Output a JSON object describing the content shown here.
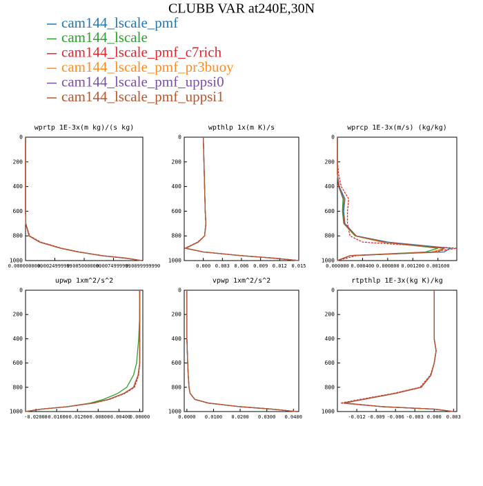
{
  "legend": [
    {
      "name": "cam144_lscale_pmf",
      "color": "#1f77b4"
    },
    {
      "name": "cam144_lscale",
      "color": "#2ca02c"
    },
    {
      "name": "cam144_lscale_pmf_c7rich",
      "color": "#e3242b"
    },
    {
      "name": "cam144_lscale_pmf_pr3buoy",
      "color": "#ff8c1a"
    },
    {
      "name": "cam144_lscale_pmf_uppsi0",
      "color": "#7a4fa6"
    },
    {
      "name": "cam144_lscale_pmf_uppsi1",
      "color": "#b5562c"
    }
  ],
  "title": "CLUBB VAR at240E,30N",
  "chart_data": [
    {
      "type": "line",
      "title": "wprtp  1E-3x(m kg)/(s kg)",
      "y_inverted": true,
      "ylim": [
        0,
        1000
      ],
      "yticks": [
        0,
        200,
        400,
        600,
        800,
        1000
      ],
      "xlim": [
        0,
        0.01
      ],
      "xticks": [
        {
          "value": 0,
          "label": "0.0000000000"
        },
        {
          "value": 0.0025,
          "label": "0.0024999999"
        },
        {
          "value": 0.005,
          "label": "0.0050000000"
        },
        {
          "value": 0.0075,
          "label": "0.0074999999"
        },
        {
          "value": 0.01,
          "label": "0.0099999990"
        }
      ],
      "y": [
        0,
        200,
        400,
        600,
        700,
        800,
        850,
        900,
        930,
        960,
        980,
        1000
      ],
      "series": [
        {
          "values": [
            0,
            0,
            0,
            0,
            2e-05,
            0.0003,
            0.0012,
            0.003,
            0.0045,
            0.0065,
            0.0085,
            0.0099
          ]
        },
        {
          "values": [
            0,
            0,
            0,
            0,
            2e-05,
            0.0003,
            0.0012,
            0.003,
            0.0045,
            0.0065,
            0.0085,
            0.0099
          ]
        },
        {
          "values": [
            0,
            0,
            0,
            0,
            3e-05,
            0.00035,
            0.0013,
            0.0031,
            0.0046,
            0.0066,
            0.0086,
            0.0099
          ]
        },
        {
          "values": [
            0,
            0,
            0,
            0,
            2e-05,
            0.0003,
            0.0012,
            0.003,
            0.0045,
            0.0065,
            0.0085,
            0.0099
          ]
        },
        {
          "values": [
            0,
            0,
            0,
            0,
            2e-05,
            0.0003,
            0.0012,
            0.003,
            0.0045,
            0.0065,
            0.0085,
            0.0099
          ]
        },
        {
          "values": [
            0,
            0,
            0,
            0,
            2e-05,
            0.0003,
            0.0012,
            0.003,
            0.0045,
            0.0065,
            0.0085,
            0.0099
          ]
        }
      ]
    },
    {
      "type": "line",
      "title": "wpthlp  1x(m K)/s",
      "y_inverted": true,
      "ylim": [
        0,
        1000
      ],
      "yticks": [
        0,
        200,
        400,
        600,
        800,
        1000
      ],
      "xlim": [
        -0.003,
        0.015
      ],
      "xticks": [
        {
          "value": 0,
          "label": "0.000"
        },
        {
          "value": 0.003,
          "label": "0.003"
        },
        {
          "value": 0.006,
          "label": "0.006"
        },
        {
          "value": 0.009,
          "label": "0.009"
        },
        {
          "value": 0.012,
          "label": "0.012"
        },
        {
          "value": 0.015,
          "label": "0.015"
        }
      ],
      "y": [
        0,
        200,
        400,
        600,
        700,
        800,
        850,
        900,
        930,
        960,
        980,
        1000
      ],
      "series": [
        {
          "values": [
            0,
            0.0001,
            0.0002,
            0.0003,
            0.0004,
            0.0002,
            -0.0008,
            -0.0028,
            0,
            0.006,
            0.011,
            0.015
          ]
        },
        {
          "values": [
            0,
            0.0001,
            0.0002,
            0.0003,
            0.0004,
            0.0002,
            -0.0008,
            -0.0027,
            0,
            0.006,
            0.011,
            0.015
          ]
        },
        {
          "values": [
            0,
            0.0001,
            0.0002,
            0.0003,
            0.0004,
            0.0002,
            -0.0009,
            -0.0029,
            0,
            0.006,
            0.011,
            0.015
          ]
        },
        {
          "values": [
            0,
            0.0001,
            0.0002,
            0.0003,
            0.0004,
            0.0002,
            -0.0008,
            -0.0028,
            0,
            0.006,
            0.011,
            0.015
          ]
        },
        {
          "values": [
            0,
            0.0001,
            0.0002,
            0.0003,
            0.0004,
            0.0002,
            -0.0008,
            -0.0028,
            0,
            0.006,
            0.011,
            0.015
          ]
        },
        {
          "values": [
            0,
            0.0001,
            0.0002,
            0.0003,
            0.0004,
            0.0002,
            -0.0008,
            -0.0028,
            0,
            0.006,
            0.011,
            0.015
          ]
        }
      ]
    },
    {
      "type": "line",
      "title": "wprcp  1E-3x(m/s) (kg/kg)",
      "y_inverted": true,
      "ylim": [
        0,
        1000
      ],
      "yticks": [
        0,
        200,
        400,
        600,
        800,
        1000
      ],
      "xlim": [
        0,
        0.0019
      ],
      "xticks": [
        {
          "value": 0,
          "label": "0.000000"
        },
        {
          "value": 0.0004,
          "label": "0.000400"
        },
        {
          "value": 0.0008,
          "label": "0.000800"
        },
        {
          "value": 0.0012,
          "label": "0.001200"
        },
        {
          "value": 0.0016,
          "label": "0.001600"
        }
      ],
      "y": [
        0,
        200,
        300,
        400,
        500,
        600,
        700,
        800,
        850,
        900,
        930,
        960,
        1000
      ],
      "series": [
        {
          "values": [
            0,
            0,
            0,
            3e-05,
            0.00012,
            0.0001,
            0.00012,
            0.0003,
            0.0008,
            0.0018,
            0.0017,
            0.0002,
            0
          ]
        },
        {
          "values": [
            0,
            0,
            0,
            2e-05,
            9e-05,
            8e-05,
            0.0001,
            0.00028,
            0.0007,
            0.0016,
            0.0014,
            0.0002,
            0
          ]
        },
        {
          "values": [
            0,
            0,
            2e-05,
            6e-05,
            0.00018,
            0.00016,
            0.00016,
            0.0002,
            0.0004,
            0.0019,
            0.0015,
            0.0003,
            0
          ]
        },
        {
          "values": [
            0,
            0,
            0,
            2e-05,
            0.0001,
            9e-05,
            0.00011,
            0.00029,
            0.0007,
            0.0017,
            0.0015,
            0.0002,
            0
          ]
        },
        {
          "values": [
            0,
            0,
            0,
            2e-05,
            0.0001,
            9e-05,
            0.00011,
            0.00029,
            0.00075,
            0.0017,
            0.0016,
            0.0002,
            0
          ]
        },
        {
          "values": [
            0,
            0,
            0,
            2e-05,
            0.0001,
            9e-05,
            0.00011,
            0.00029,
            0.00075,
            0.0017,
            0.0016,
            0.0002,
            0
          ]
        }
      ]
    },
    {
      "type": "line",
      "title": "upwp  1xm^2/s^2",
      "y_inverted": true,
      "ylim": [
        0,
        1000
      ],
      "yticks": [
        0,
        200,
        400,
        600,
        800,
        1000
      ],
      "xlim": [
        -0.022,
        0.0006
      ],
      "xticks": [
        {
          "value": -0.02,
          "label": "-0.02000"
        },
        {
          "value": -0.016,
          "label": "-0.01600"
        },
        {
          "value": -0.012,
          "label": "-0.01200"
        },
        {
          "value": -0.008,
          "label": "-0.00800"
        },
        {
          "value": -0.004,
          "label": "-0.00400"
        },
        {
          "value": 0,
          "label": "0.00000"
        }
      ],
      "y": [
        0,
        200,
        400,
        600,
        700,
        800,
        850,
        900,
        930,
        960,
        980,
        1000
      ],
      "series": [
        {
          "values": [
            0,
            0,
            0,
            0,
            -0.0003,
            -0.0012,
            -0.003,
            -0.006,
            -0.009,
            -0.014,
            -0.019,
            -0.022
          ]
        },
        {
          "values": [
            0,
            0,
            -0.0002,
            -0.0006,
            -0.0012,
            -0.0025,
            -0.0042,
            -0.007,
            -0.0095,
            -0.014,
            -0.019,
            -0.022
          ]
        },
        {
          "values": [
            0,
            0,
            0,
            0,
            -0.0002,
            -0.001,
            -0.0028,
            -0.0058,
            -0.0088,
            -0.014,
            -0.019,
            -0.022
          ]
        },
        {
          "values": [
            0,
            0,
            0,
            0,
            -0.0003,
            -0.0012,
            -0.003,
            -0.006,
            -0.009,
            -0.014,
            -0.019,
            -0.022
          ]
        },
        {
          "values": [
            0,
            0,
            0,
            0,
            -0.0003,
            -0.0012,
            -0.003,
            -0.006,
            -0.009,
            -0.014,
            -0.019,
            -0.022
          ]
        },
        {
          "values": [
            0,
            0,
            0,
            0,
            -0.0003,
            -0.0012,
            -0.003,
            -0.006,
            -0.009,
            -0.014,
            -0.019,
            -0.022
          ]
        }
      ]
    },
    {
      "type": "line",
      "title": "vpwp  1xm^2/s^2",
      "y_inverted": true,
      "ylim": [
        0,
        1000
      ],
      "yticks": [
        0,
        200,
        400,
        600,
        800,
        1000
      ],
      "xlim": [
        -0.001,
        0.042
      ],
      "xticks": [
        {
          "value": 0,
          "label": "0.0000"
        },
        {
          "value": 0.01,
          "label": "0.0100"
        },
        {
          "value": 0.02,
          "label": "0.0200"
        },
        {
          "value": 0.03,
          "label": "0.0300"
        },
        {
          "value": 0.04,
          "label": "0.0400"
        }
      ],
      "y": [
        0,
        200,
        400,
        600,
        700,
        800,
        850,
        900,
        930,
        960,
        980,
        1000
      ],
      "series": [
        {
          "values": [
            0,
            0,
            0,
            0.0003,
            0.0005,
            0.0008,
            0.0012,
            0.003,
            0.008,
            0.02,
            0.032,
            0.041
          ]
        },
        {
          "values": [
            0,
            0,
            0,
            0.0003,
            0.0005,
            0.0008,
            0.0012,
            0.003,
            0.008,
            0.02,
            0.032,
            0.041
          ]
        },
        {
          "values": [
            0,
            0,
            0,
            0.0003,
            0.0005,
            0.0008,
            0.0012,
            0.003,
            0.008,
            0.02,
            0.032,
            0.041
          ]
        },
        {
          "values": [
            0,
            0,
            0,
            0.0003,
            0.0005,
            0.0008,
            0.0012,
            0.003,
            0.008,
            0.02,
            0.032,
            0.041
          ]
        },
        {
          "values": [
            0,
            0,
            0,
            0.0003,
            0.0005,
            0.0008,
            0.0012,
            0.003,
            0.008,
            0.02,
            0.032,
            0.041
          ]
        },
        {
          "values": [
            0,
            0,
            0,
            0.0003,
            0.0005,
            0.0008,
            0.0012,
            0.003,
            0.008,
            0.02,
            0.032,
            0.041
          ]
        }
      ]
    },
    {
      "type": "line",
      "title": "rtpthlp  1E-3x(kg K)/kg",
      "y_inverted": true,
      "ylim": [
        0,
        1000
      ],
      "yticks": [
        0,
        200,
        400,
        600,
        800,
        1000
      ],
      "xlim": [
        -0.015,
        0.0035
      ],
      "xticks": [
        {
          "value": -0.012,
          "label": "-0.012"
        },
        {
          "value": -0.009,
          "label": "-0.009"
        },
        {
          "value": -0.006,
          "label": "-0.006"
        },
        {
          "value": -0.003,
          "label": "-0.003"
        },
        {
          "value": 0,
          "label": "0.000"
        },
        {
          "value": 0.003,
          "label": "0.003"
        }
      ],
      "y": [
        0,
        200,
        400,
        500,
        600,
        700,
        800,
        850,
        900,
        930,
        960,
        980,
        1000
      ],
      "series": [
        {
          "values": [
            0,
            0,
            0,
            0.0003,
            0,
            -0.0005,
            -0.002,
            -0.006,
            -0.011,
            -0.014,
            -0.008,
            0,
            0.003
          ]
        },
        {
          "values": [
            0,
            0,
            0,
            0.0003,
            0,
            -0.0005,
            -0.002,
            -0.006,
            -0.011,
            -0.014,
            -0.008,
            0,
            0.003
          ]
        },
        {
          "values": [
            0,
            0,
            0,
            0.0003,
            0,
            -0.0006,
            -0.0022,
            -0.0063,
            -0.0115,
            -0.0145,
            -0.008,
            0,
            0.003
          ]
        },
        {
          "values": [
            0,
            0,
            0,
            0.0003,
            0,
            -0.0005,
            -0.002,
            -0.006,
            -0.011,
            -0.014,
            -0.008,
            0,
            0.003
          ]
        },
        {
          "values": [
            0,
            0,
            0,
            0.0003,
            0,
            -0.0005,
            -0.002,
            -0.006,
            -0.011,
            -0.014,
            -0.008,
            0,
            0.003
          ]
        },
        {
          "values": [
            0,
            0,
            0,
            0.0003,
            0,
            -0.0005,
            -0.002,
            -0.006,
            -0.011,
            -0.014,
            -0.008,
            0,
            0.003
          ]
        }
      ]
    }
  ]
}
